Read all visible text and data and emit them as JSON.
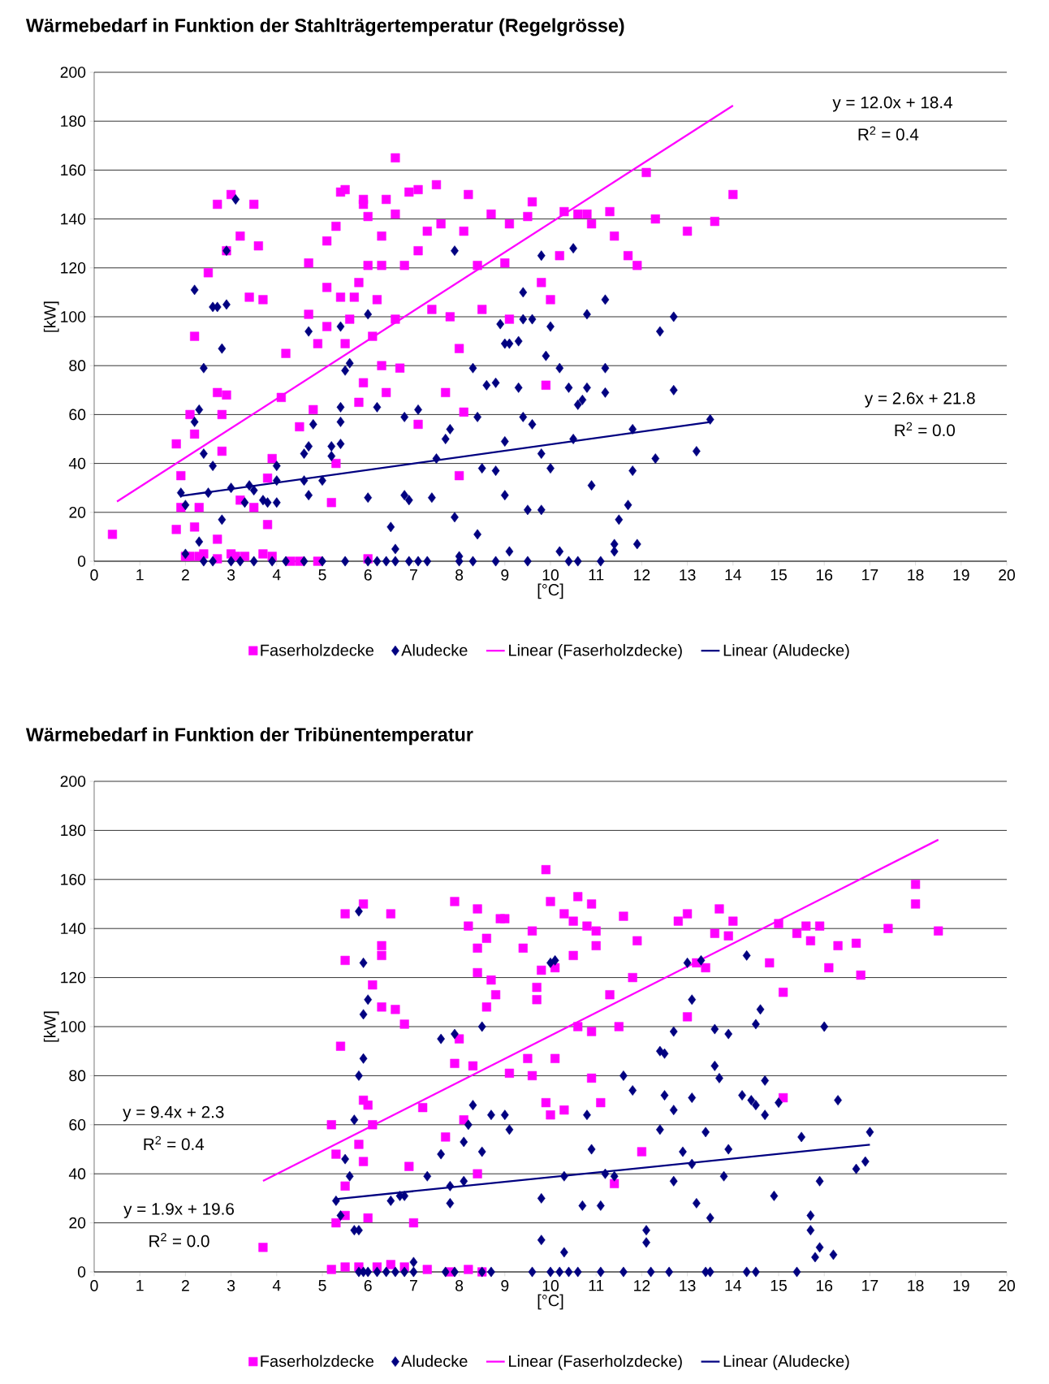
{
  "chart_data": [
    {
      "type": "scatter",
      "title": "Wärmebedarf in Funktion der Stahlträgertemperatur (Regelgrösse)",
      "xlabel": "[°C]",
      "ylabel": "[kW]",
      "xlim": [
        0,
        20
      ],
      "xticks": [
        0,
        1,
        2,
        3,
        4,
        5,
        6,
        7,
        8,
        9,
        10,
        11,
        12,
        13,
        14,
        15,
        16,
        17,
        18,
        19,
        20
      ],
      "ylim": [
        0,
        200
      ],
      "yticks": [
        0,
        20,
        40,
        60,
        80,
        100,
        120,
        140,
        160,
        180,
        200
      ],
      "grid": "y",
      "legend": "bottom",
      "annotations": [
        "y = 12.0x + 18.4",
        "R$^{2}$ = 0.4",
        "y = 2.6x + 21.8",
        "R$^{2}$ = 0.0"
      ],
      "series": [
        {
          "name": "Faserholzdecke",
          "marker": "square",
          "color": "#ff00ff",
          "x": [
            0.4,
            1.8,
            1.9,
            1.8,
            1.9,
            2.0,
            2.1,
            2.2,
            2.2,
            2.2,
            2.3,
            2.4,
            2.5,
            2.7,
            2.7,
            2.7,
            2.9,
            2.8,
            2.8,
            2.9,
            3.0,
            3.0,
            3.2,
            3.2,
            3.4,
            3.5,
            3.5,
            3.6,
            3.7,
            3.8,
            3.8,
            3.9,
            4.2,
            4.1,
            4.3,
            4.5,
            4.7,
            4.7,
            4.8,
            4.9,
            5.1,
            5.1,
            5.1,
            5.2,
            5.3,
            5.4,
            5.3,
            5.4,
            5.5,
            5.5,
            5.6,
            5.7,
            5.8,
            5.8,
            5.9,
            5.9,
            5.9,
            6.0,
            6.0,
            6.1,
            6.2,
            6.3,
            6.3,
            6.3,
            6.4,
            6.4,
            6.6,
            6.6,
            6.6,
            6.7,
            6.8,
            6.9,
            7.1,
            7.1,
            7.1,
            7.3,
            7.4,
            7.5,
            7.6,
            7.7,
            7.8,
            8.0,
            8.0,
            8.1,
            8.1,
            8.2,
            8.4,
            8.5,
            8.7,
            9.0,
            9.1,
            9.1,
            9.5,
            9.6,
            9.8,
            9.9,
            10.0,
            10.2,
            10.3,
            10.6,
            10.8,
            10.9,
            11.3,
            11.4,
            11.7,
            11.9,
            12.1,
            12.3,
            13.0,
            13.6,
            14.0,
            2.1,
            2.3,
            2.7,
            3.1,
            3.3,
            3.7,
            3.9,
            4.5,
            4.9,
            6.0
          ],
          "values": [
            11,
            48,
            35,
            13,
            22,
            2,
            60,
            92,
            52,
            14,
            22,
            3,
            118,
            146,
            9,
            69,
            68,
            60,
            45,
            127,
            150,
            3,
            133,
            25,
            108,
            22,
            146,
            129,
            107,
            34,
            15,
            42,
            85,
            67,
            0,
            55,
            101,
            122,
            62,
            89,
            131,
            96,
            112,
            24,
            137,
            151,
            40,
            108,
            89,
            152,
            99,
            108,
            65,
            114,
            148,
            73,
            146,
            141,
            121,
            92,
            107,
            80,
            121,
            133,
            148,
            69,
            165,
            142,
            99,
            79,
            121,
            151,
            152,
            56,
            127,
            135,
            103,
            154,
            138,
            69,
            100,
            35,
            87,
            135,
            61,
            150,
            121,
            103,
            142,
            122,
            99,
            138,
            141,
            147,
            114,
            72,
            107,
            125,
            143,
            142,
            142,
            138,
            143,
            133,
            125,
            121,
            159,
            140,
            135,
            139,
            150,
            2,
            2,
            1,
            2,
            2,
            3,
            2,
            0,
            0,
            1
          ]
        },
        {
          "name": "Aludecke",
          "marker": "diamond",
          "color": "#000080",
          "x": [
            2.0,
            1.9,
            2.0,
            2.2,
            2.2,
            2.3,
            2.3,
            2.4,
            2.4,
            2.6,
            2.5,
            2.6,
            2.7,
            2.9,
            2.8,
            2.8,
            2.9,
            3.1,
            3.0,
            3.4,
            3.5,
            3.3,
            3.7,
            3.8,
            4.0,
            4.0,
            4.0,
            4.6,
            4.7,
            4.7,
            4.6,
            4.7,
            4.8,
            5.0,
            5.4,
            5.2,
            5.2,
            5.4,
            5.5,
            5.6,
            5.4,
            5.4,
            6.0,
            6.2,
            6.0,
            6.5,
            6.6,
            6.8,
            6.8,
            6.9,
            7.1,
            7.4,
            7.5,
            7.7,
            7.8,
            7.9,
            7.9,
            8.0,
            8.3,
            8.4,
            8.4,
            8.5,
            8.6,
            8.8,
            8.8,
            8.9,
            9.0,
            9.0,
            9.1,
            9.0,
            9.1,
            9.3,
            9.3,
            9.4,
            9.4,
            9.4,
            9.5,
            9.6,
            9.6,
            9.8,
            9.8,
            9.8,
            9.9,
            10.0,
            10.0,
            10.2,
            10.2,
            10.4,
            10.5,
            10.5,
            10.6,
            10.7,
            10.8,
            10.8,
            10.9,
            11.2,
            11.2,
            11.2,
            11.4,
            11.4,
            11.5,
            11.7,
            11.8,
            11.8,
            11.9,
            12.3,
            12.4,
            12.7,
            12.7,
            13.2,
            13.5,
            2.4,
            2.6,
            3.0,
            3.2,
            3.5,
            3.9,
            4.2,
            4.6,
            5.0,
            5.5,
            6.0,
            6.2,
            6.4,
            6.6,
            6.9,
            7.1,
            7.3,
            8.0,
            8.3,
            8.8,
            9.5,
            10.4,
            10.6,
            11.1
          ],
          "values": [
            3,
            28,
            23,
            111,
            57,
            62,
            8,
            44,
            79,
            39,
            28,
            104,
            104,
            105,
            87,
            17,
            127,
            148,
            30,
            31,
            29,
            24,
            25,
            24,
            39,
            24,
            33,
            44,
            47,
            94,
            33,
            27,
            56,
            33,
            57,
            47,
            43,
            96,
            78,
            81,
            63,
            48,
            101,
            63,
            26,
            14,
            5,
            59,
            27,
            25,
            62,
            26,
            42,
            50,
            54,
            127,
            18,
            2,
            79,
            11,
            59,
            38,
            72,
            73,
            37,
            97,
            89,
            49,
            89,
            27,
            4,
            90,
            71,
            110,
            99,
            59,
            21,
            56,
            99,
            21,
            44,
            125,
            84,
            96,
            38,
            79,
            4,
            71,
            128,
            50,
            64,
            66,
            101,
            71,
            31,
            107,
            79,
            69,
            7,
            4,
            17,
            23,
            37,
            54,
            7,
            42,
            94,
            100,
            70,
            45,
            58,
            0,
            0,
            0,
            0,
            0,
            0,
            0,
            0,
            0,
            0,
            0,
            0,
            0,
            0,
            0,
            0,
            0,
            0,
            0,
            0,
            0,
            0,
            0,
            0
          ]
        },
        {
          "name": "Linear (Faserholzdecke)",
          "type": "line",
          "color": "#ff00ff",
          "x": [
            0.5,
            14.0
          ],
          "values": [
            24.4,
            186.4
          ]
        },
        {
          "name": "Linear (Aludecke)",
          "type": "line",
          "color": "#000080",
          "x": [
            1.9,
            13.5
          ],
          "values": [
            26.7,
            56.9
          ]
        }
      ]
    },
    {
      "type": "scatter",
      "title": "Wärmebedarf in Funktion der Tribünentemperatur",
      "xlabel": "[°C]",
      "ylabel": "[kW]",
      "xlim": [
        0,
        20
      ],
      "xticks": [
        0,
        1,
        2,
        3,
        4,
        5,
        6,
        7,
        8,
        9,
        10,
        11,
        12,
        13,
        14,
        15,
        16,
        17,
        18,
        19,
        20
      ],
      "ylim": [
        0,
        200
      ],
      "yticks": [
        0,
        20,
        40,
        60,
        80,
        100,
        120,
        140,
        160,
        180,
        200
      ],
      "grid": "y",
      "legend": "bottom",
      "annotations": [
        "y = 9.4x + 2.3",
        "R$^{2}$ = 0.4",
        "y = 1.9x + 19.6",
        "R$^{2}$ = 0.0"
      ],
      "series": [
        {
          "name": "Faserholzdecke",
          "marker": "square",
          "color": "#ff00ff",
          "x": [
            3.7,
            5.2,
            5.3,
            5.3,
            5.4,
            5.5,
            5.5,
            5.5,
            5.5,
            5.8,
            5.9,
            5.9,
            5.9,
            6.0,
            6.0,
            6.1,
            6.1,
            6.3,
            6.3,
            6.3,
            6.5,
            6.6,
            6.8,
            6.9,
            7.0,
            7.2,
            7.7,
            7.9,
            7.9,
            8.0,
            8.1,
            8.2,
            8.3,
            8.4,
            8.4,
            8.4,
            8.4,
            8.6,
            8.6,
            8.7,
            8.8,
            8.9,
            9.1,
            9.0,
            9.4,
            9.5,
            9.6,
            9.6,
            9.7,
            9.7,
            9.8,
            9.9,
            9.9,
            10.0,
            10.0,
            10.1,
            10.1,
            10.3,
            10.3,
            10.5,
            10.5,
            10.6,
            10.6,
            10.8,
            10.9,
            10.9,
            10.9,
            11.0,
            11.0,
            11.1,
            11.3,
            11.4,
            11.5,
            11.6,
            11.8,
            11.9,
            12.0,
            12.8,
            13.0,
            13.0,
            13.2,
            13.4,
            13.6,
            13.7,
            13.9,
            14.0,
            14.8,
            15.0,
            15.1,
            15.1,
            15.4,
            15.6,
            15.7,
            15.9,
            16.1,
            16.3,
            16.7,
            16.8,
            17.4,
            18.0,
            18.0,
            18.5,
            5.2,
            5.5,
            5.8,
            6.2,
            6.5,
            6.8,
            7.3,
            7.8,
            8.2,
            8.5
          ],
          "values": [
            10,
            60,
            48,
            20,
            92,
            127,
            146,
            35,
            23,
            52,
            45,
            150,
            70,
            68,
            22,
            117,
            60,
            108,
            133,
            129,
            146,
            107,
            101,
            43,
            20,
            67,
            55,
            151,
            85,
            95,
            62,
            141,
            84,
            148,
            132,
            40,
            122,
            108,
            136,
            119,
            113,
            144,
            81,
            144,
            132,
            87,
            80,
            139,
            116,
            111,
            123,
            164,
            69,
            151,
            64,
            124,
            87,
            146,
            66,
            143,
            129,
            153,
            100,
            141,
            98,
            79,
            150,
            139,
            133,
            69,
            113,
            36,
            100,
            145,
            120,
            135,
            49,
            143,
            104,
            146,
            126,
            124,
            138,
            148,
            137,
            143,
            126,
            142,
            114,
            71,
            138,
            141,
            135,
            141,
            124,
            133,
            134,
            121,
            140,
            150,
            158,
            139,
            1,
            2,
            2,
            2,
            3,
            2,
            1,
            0,
            1,
            0
          ]
        },
        {
          "name": "Aludecke",
          "marker": "diamond",
          "color": "#000080",
          "x": [
            5.3,
            5.4,
            5.5,
            5.6,
            5.7,
            5.7,
            5.8,
            5.8,
            5.8,
            5.9,
            5.9,
            5.9,
            6.0,
            6.5,
            6.7,
            6.8,
            7.0,
            7.3,
            7.6,
            7.6,
            7.8,
            7.8,
            7.9,
            8.1,
            8.1,
            8.2,
            8.3,
            8.5,
            8.5,
            8.7,
            9.0,
            9.1,
            9.8,
            9.8,
            10.0,
            10.1,
            10.3,
            10.3,
            10.7,
            10.8,
            10.9,
            11.1,
            11.2,
            11.4,
            11.6,
            11.8,
            12.1,
            12.1,
            12.4,
            12.4,
            12.5,
            12.5,
            12.7,
            12.7,
            12.7,
            12.9,
            13.0,
            13.1,
            13.1,
            13.1,
            13.2,
            13.3,
            13.4,
            13.5,
            13.6,
            13.6,
            13.7,
            13.8,
            13.9,
            13.9,
            14.2,
            14.3,
            14.4,
            14.5,
            14.5,
            14.6,
            14.7,
            14.7,
            14.9,
            15.0,
            15.5,
            15.7,
            15.7,
            15.8,
            15.9,
            15.9,
            16.0,
            16.2,
            16.3,
            16.7,
            16.9,
            17.0,
            5.8,
            5.9,
            6.0,
            6.2,
            6.4,
            6.6,
            6.8,
            7.0,
            7.7,
            7.9,
            8.5,
            8.7,
            9.6,
            10.0,
            10.2,
            10.4,
            10.6,
            11.1,
            11.6,
            12.2,
            12.6,
            13.4,
            13.5,
            14.3,
            14.5,
            15.4
          ],
          "values": [
            29,
            23,
            46,
            39,
            62,
            17,
            147,
            80,
            17,
            126,
            105,
            87,
            111,
            29,
            31,
            31,
            4,
            39,
            95,
            48,
            35,
            28,
            97,
            37,
            53,
            60,
            68,
            100,
            49,
            64,
            64,
            58,
            30,
            13,
            126,
            127,
            8,
            39,
            27,
            64,
            50,
            27,
            40,
            39,
            80,
            74,
            17,
            12,
            58,
            90,
            89,
            72,
            98,
            66,
            37,
            49,
            126,
            111,
            71,
            44,
            28,
            127,
            57,
            22,
            99,
            84,
            79,
            39,
            97,
            50,
            72,
            129,
            70,
            68,
            101,
            107,
            78,
            64,
            31,
            69,
            55,
            23,
            17,
            6,
            10,
            37,
            100,
            7,
            70,
            42,
            45,
            57,
            0,
            0,
            0,
            0,
            0,
            0,
            0,
            0,
            0,
            0,
            0,
            0,
            0,
            0,
            0,
            0,
            0,
            0,
            0,
            0,
            0,
            0,
            0,
            0,
            0,
            0
          ]
        },
        {
          "name": "Linear (Faserholzdecke)",
          "type": "line",
          "color": "#ff00ff",
          "x": [
            3.7,
            18.5
          ],
          "values": [
            37.1,
            176.2
          ]
        },
        {
          "name": "Linear (Aludecke)",
          "type": "line",
          "color": "#000080",
          "x": [
            5.3,
            17.0
          ],
          "values": [
            29.7,
            51.9
          ]
        }
      ]
    }
  ]
}
